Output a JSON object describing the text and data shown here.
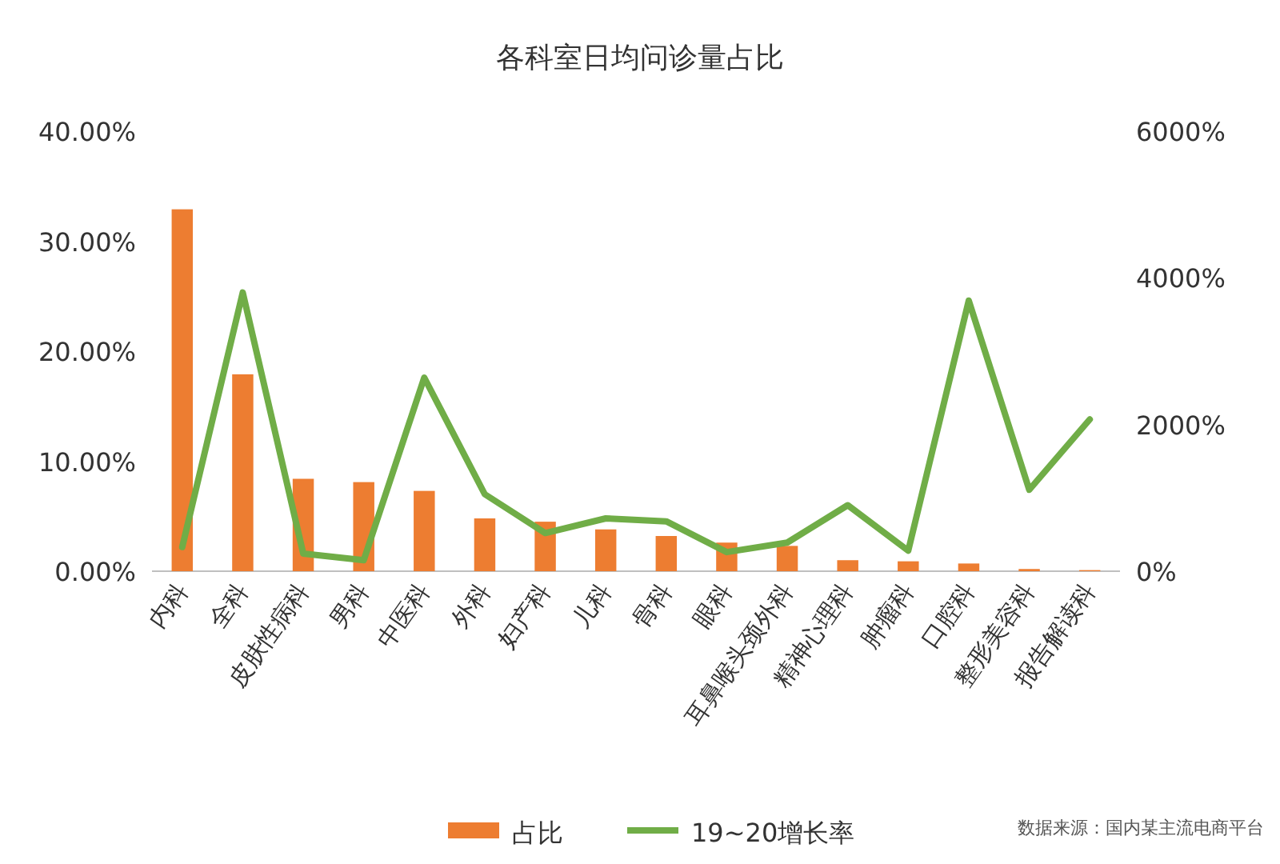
{
  "chart_data": {
    "type": "bar",
    "title": "各科室日均问诊量占比",
    "categories": [
      "内科",
      "全科",
      "皮肤性病科",
      "男科",
      "中医科",
      "外科",
      "妇产科",
      "儿科",
      "骨科",
      "眼科",
      "耳鼻喉头颈外科",
      "精神心理科",
      "肿瘤科",
      "口腔科",
      "整形美容科",
      "报告解读科"
    ],
    "series": [
      {
        "name": "占比",
        "color": "#ed7d31",
        "values": [
          32.9,
          17.9,
          8.4,
          8.1,
          7.3,
          4.8,
          4.5,
          3.8,
          3.2,
          2.6,
          2.3,
          1.0,
          0.9,
          0.7,
          0.2,
          0.1
        ]
      },
      {
        "name": "19~20增长率",
        "type": "line",
        "axis": "y2",
        "color": "#70ad47",
        "values": [
          330,
          3800,
          240,
          150,
          2640,
          1050,
          520,
          720,
          680,
          260,
          390,
          900,
          280,
          3690,
          1110,
          2070
        ]
      }
    ],
    "ylim": [
      0,
      40
    ],
    "yticks": [
      {
        "value": 0,
        "label": "0.00%"
      },
      {
        "value": 10,
        "label": "10.00%"
      },
      {
        "value": 20,
        "label": "20.00%"
      },
      {
        "value": 30,
        "label": "30.00%"
      },
      {
        "value": 40,
        "label": "40.00%"
      }
    ],
    "y2lim": [
      0,
      6000
    ],
    "y2ticks": [
      {
        "value": 0,
        "label": "0%"
      },
      {
        "value": 2000,
        "label": "2000%"
      },
      {
        "value": 4000,
        "label": "4000%"
      },
      {
        "value": 6000,
        "label": "6000%"
      }
    ],
    "legend": "bottom",
    "annotations": [
      "数据来源：国内某主流电商平台"
    ]
  }
}
